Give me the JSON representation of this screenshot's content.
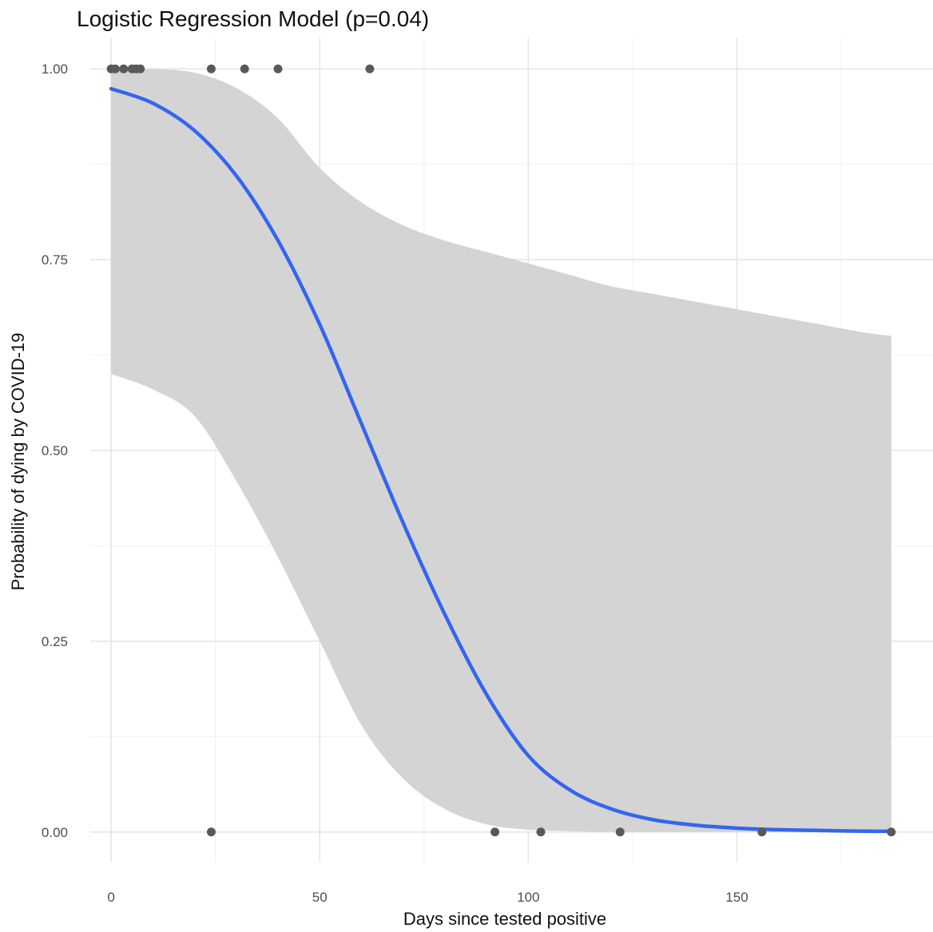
{
  "chart_data": {
    "type": "scatter",
    "title": "Logistic Regression Model (p=0.04)",
    "xlabel": "Days since tested positive",
    "ylabel": "Probability of dying by COVID-19",
    "xlim": [
      -5,
      197
    ],
    "ylim": [
      -0.04,
      1.04
    ],
    "x_ticks": [
      0,
      50,
      100,
      150
    ],
    "x_tick_labels": [
      "0",
      "50",
      "100",
      "150"
    ],
    "y_ticks": [
      0.0,
      0.25,
      0.5,
      0.75,
      1.0
    ],
    "y_tick_labels": [
      "0.00",
      "0.25",
      "0.50",
      "0.75",
      "1.00"
    ],
    "grid": true,
    "colors": {
      "line": "#3366ee",
      "ribbon": "#d4d4d4",
      "points": "#595959"
    },
    "series": [
      {
        "type": "scatter",
        "x": [
          0,
          1,
          3,
          5,
          6,
          7,
          24,
          32,
          40,
          62,
          24,
          92,
          103,
          122,
          156,
          187
        ],
        "y": [
          1,
          1,
          1,
          1,
          1,
          1,
          1,
          1,
          1,
          1,
          0,
          0,
          0,
          0,
          0,
          0
        ]
      },
      {
        "type": "line",
        "x": [
          0,
          10,
          20,
          30,
          40,
          50,
          60,
          70,
          80,
          90,
          100,
          110,
          120,
          130,
          140,
          150,
          160,
          170,
          180,
          187
        ],
        "y": [
          0.974,
          0.955,
          0.919,
          0.86,
          0.775,
          0.665,
          0.535,
          0.405,
          0.285,
          0.18,
          0.1,
          0.055,
          0.03,
          0.016,
          0.009,
          0.005,
          0.003,
          0.002,
          0.001,
          0.001
        ],
        "ci_lower": [
          0.6,
          0.58,
          0.545,
          0.46,
          0.36,
          0.25,
          0.14,
          0.07,
          0.03,
          0.01,
          0.003,
          0.001,
          0.0,
          0.0,
          0.0,
          0.0,
          0.0,
          0.0,
          0.0,
          0.0
        ],
        "ci_upper": [
          1.0,
          1.0,
          0.995,
          0.975,
          0.935,
          0.87,
          0.825,
          0.795,
          0.775,
          0.76,
          0.745,
          0.73,
          0.715,
          0.705,
          0.695,
          0.685,
          0.675,
          0.665,
          0.655,
          0.65
        ]
      }
    ]
  }
}
